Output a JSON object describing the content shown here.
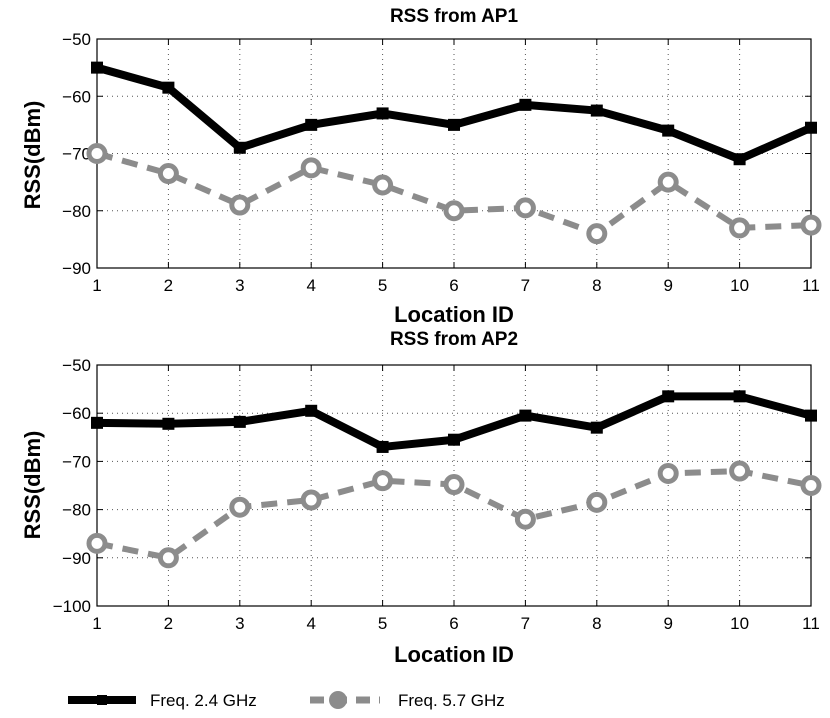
{
  "chart_data": [
    {
      "type": "line",
      "title": "RSS from AP1",
      "xlabel": "Location ID",
      "ylabel": "RSS(dBm)",
      "x": [
        1,
        2,
        3,
        4,
        5,
        6,
        7,
        8,
        9,
        10,
        11
      ],
      "xlim": [
        1,
        11
      ],
      "ylim": [
        -90,
        -50
      ],
      "xticks": [
        "1",
        "2",
        "3",
        "4",
        "5",
        "6",
        "7",
        "8",
        "9",
        "10",
        "11"
      ],
      "yticks": [
        "−50",
        "−60",
        "−70",
        "−80",
        "−90"
      ],
      "yticks_values": [
        -50,
        -60,
        -70,
        -80,
        -90
      ],
      "grid": true,
      "series": [
        {
          "name": "Freq. 2.4 GHz",
          "color": "#000000",
          "values": [
            -55,
            -58.5,
            -69,
            -65,
            -63,
            -65,
            -61.5,
            -62.5,
            -66,
            -71,
            -65.5
          ]
        },
        {
          "name": "Freq. 5.7 GHz",
          "color": "#8c8c8c",
          "values": [
            -70,
            -73.5,
            -79,
            -72.5,
            -75.5,
            -80,
            -79.5,
            -84,
            -75,
            -83,
            -82.5
          ]
        }
      ]
    },
    {
      "type": "line",
      "title": "RSS from AP2",
      "xlabel": "Location ID",
      "ylabel": "RSS(dBm)",
      "x": [
        1,
        2,
        3,
        4,
        5,
        6,
        7,
        8,
        9,
        10,
        11
      ],
      "xlim": [
        1,
        11
      ],
      "ylim": [
        -100,
        -50
      ],
      "xticks": [
        "1",
        "2",
        "3",
        "4",
        "5",
        "6",
        "7",
        "8",
        "9",
        "10",
        "11"
      ],
      "yticks": [
        "−50",
        "−60",
        "−70",
        "−80",
        "−90",
        "−100"
      ],
      "yticks_values": [
        -50,
        -60,
        -70,
        -80,
        -90,
        -100
      ],
      "grid": true,
      "series": [
        {
          "name": "Freq. 2.4 GHz",
          "color": "#000000",
          "values": [
            -62,
            -62.2,
            -61.8,
            -59.5,
            -67,
            -65.5,
            -60.5,
            -63,
            -56.5,
            -56.5,
            -60.5
          ]
        },
        {
          "name": "Freq. 5.7 GHz",
          "color": "#8c8c8c",
          "values": [
            -87,
            -90,
            -79.5,
            -78,
            -74,
            -74.8,
            -82,
            -78.5,
            -72.5,
            -72,
            -75
          ]
        }
      ]
    }
  ],
  "legend": {
    "items": [
      {
        "label": "Freq. 2.4 GHz",
        "color": "#000000",
        "marker": "square",
        "style": "solid"
      },
      {
        "label": "Freq. 5.7 GHz",
        "color": "#8c8c8c",
        "marker": "circle",
        "style": "dashed"
      }
    ]
  }
}
